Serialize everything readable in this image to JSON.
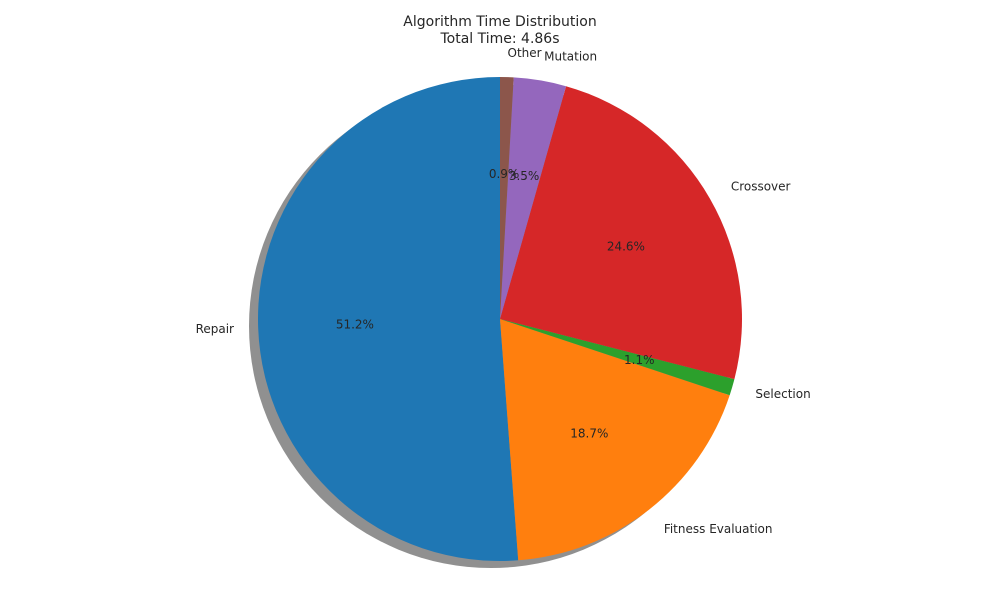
{
  "chart_data": {
    "type": "pie",
    "title": "Algorithm Time Distribution",
    "subtitle": "Total Time: 4.86s",
    "slices": [
      {
        "label": "Repair",
        "value": 51.2,
        "pct_label": "51.2%",
        "color": "#1f77b4"
      },
      {
        "label": "Fitness Evaluation",
        "value": 18.7,
        "pct_label": "18.7%",
        "color": "#ff7f0e"
      },
      {
        "label": "Selection",
        "value": 1.1,
        "pct_label": "1.1%",
        "color": "#2ca02c"
      },
      {
        "label": "Crossover",
        "value": 24.6,
        "pct_label": "24.6%",
        "color": "#d62728"
      },
      {
        "label": "Mutation",
        "value": 3.5,
        "pct_label": "3.5%",
        "color": "#9467bd"
      },
      {
        "label": "Other",
        "value": 0.9,
        "pct_label": "0.9%",
        "color": "#8c564b"
      }
    ],
    "start_angle_deg": 90,
    "direction": "counterclockwise",
    "shadow": true,
    "legend": "none"
  }
}
